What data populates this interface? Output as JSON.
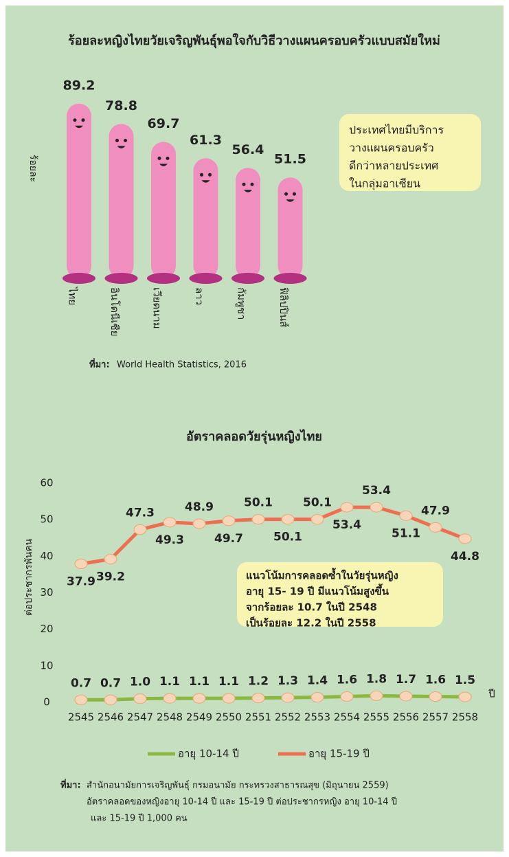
{
  "chart_data": [
    {
      "type": "bar",
      "title": "ร้อยละหญิงไทยวัยเจริญพันธุ์พอใจกับวิธีวางแผนครอบครัวแบบสมัยใหม่",
      "y_label": "ร้อยละ",
      "categories": [
        "ไทย",
        "อินโดนีเซีย",
        "เวียดนาม",
        "ลาว",
        "กัมพูชา",
        "ฟิลิปปินส์"
      ],
      "values": [
        89.2,
        78.8,
        69.7,
        61.3,
        56.4,
        51.5
      ],
      "color": "#f08fbf",
      "annotation": [
        "ประเทศไทยมีบริการ",
        "วางแผนครอบครัว",
        "ดีกว่าหลายประเทศ",
        "ในกลุ่มอาเซียน"
      ],
      "source_label": "ที่มา:",
      "source": "World Health Statistics, 2016"
    },
    {
      "type": "line",
      "title": "อัตราคลอดวัยรุ่นหญิงไทย",
      "y_label": "ต่อประชากรพันคน",
      "x_label": "ปี",
      "categories": [
        "2545",
        "2546",
        "2547",
        "2548",
        "2549",
        "2550",
        "2551",
        "2552",
        "2553",
        "2554",
        "2555",
        "2556",
        "2557",
        "2558"
      ],
      "ylim": [
        0,
        60
      ],
      "yticks": [
        0,
        10,
        20,
        30,
        40,
        50,
        60
      ],
      "series": [
        {
          "name": "อายุ 10-14 ปี",
          "color": "#8bb83e",
          "values": [
            0.7,
            0.7,
            1.0,
            1.1,
            1.1,
            1.1,
            1.2,
            1.3,
            1.4,
            1.6,
            1.8,
            1.7,
            1.6,
            1.5
          ],
          "value_labels": [
            "0.7",
            "0.7",
            "1.0",
            "1.1",
            "1.1",
            "1.1",
            "1.2",
            "1.3",
            "1.4",
            "1.6",
            "1.8",
            "1.7",
            "1.6",
            "1.5"
          ]
        },
        {
          "name": "อายุ 15-19 ปี",
          "color": "#ee6e50",
          "values": [
            37.9,
            39.2,
            47.3,
            49.3,
            48.9,
            49.7,
            50.1,
            50.1,
            50.1,
            53.4,
            53.4,
            51.1,
            47.9,
            44.8
          ]
        }
      ],
      "annotation": [
        "แนวโน้มการคลอดซ้ำในวัยรุ่นหญิง",
        "อายุ 15- 19 ปี มีแนวโน้มสูงขึ้น",
        "จากร้อยละ 10.7 ในปี 2548",
        "เป็นร้อยละ 12.2 ในปี 2558"
      ],
      "source_label": "ที่มา:",
      "source": [
        "สำนักอนามัยการเจริญพันธุ์ กรมอนามัย กระทรวงสาธารณสุข (มิถุนายน 2559)",
        "อัตราคลอดของหญิงอายุ 10-14 ปี และ 15-19 ปี ต่อประชากรหญิง อายุ 10-14 ปี",
        "และ 15-19 ปี 1,000 คน"
      ]
    }
  ]
}
